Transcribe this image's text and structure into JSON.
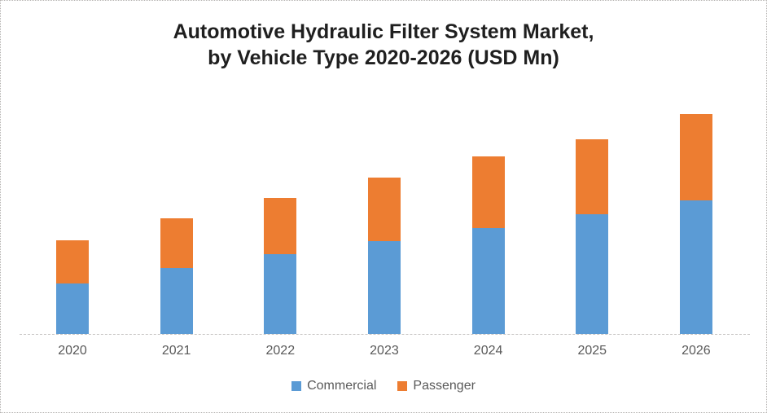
{
  "title": {
    "line1": "Automotive Hydraulic Filter System Market,",
    "line2": "by Vehicle Type 2020-2026 (USD Mn)"
  },
  "chart_data": {
    "type": "bar",
    "stacked": true,
    "title": "Automotive Hydraulic Filter System Market, by Vehicle Type 2020-2026 (USD Mn)",
    "categories": [
      "2020",
      "2021",
      "2022",
      "2023",
      "2024",
      "2025",
      "2026"
    ],
    "series": [
      {
        "name": "Commercial",
        "color": "#5B9BD5",
        "values": [
          62,
          81,
          98,
          114,
          130,
          147,
          165
        ]
      },
      {
        "name": "Passenger",
        "color": "#ED7D31",
        "values": [
          53,
          61,
          70,
          79,
          89,
          93,
          106
        ]
      }
    ],
    "stacked_totals": [
      115,
      142,
      168,
      193,
      219,
      240,
      271
    ],
    "value_units": "relative units (USD Mn implied by title; y-axis unlabeled in source)",
    "xlabel": "",
    "ylabel": "",
    "ylim": [
      0,
      310
    ],
    "grid": false,
    "y_axis_visible": false,
    "legend_position": "bottom"
  },
  "colors": {
    "commercial_blue": "#5B9BD5",
    "passenger_orange": "#ED7D31",
    "axis_line_gray": "#C9C7C5",
    "label_gray": "#595959",
    "title_text": "#1F1F1F",
    "canvas_border_gray": "#B3B1AF"
  }
}
